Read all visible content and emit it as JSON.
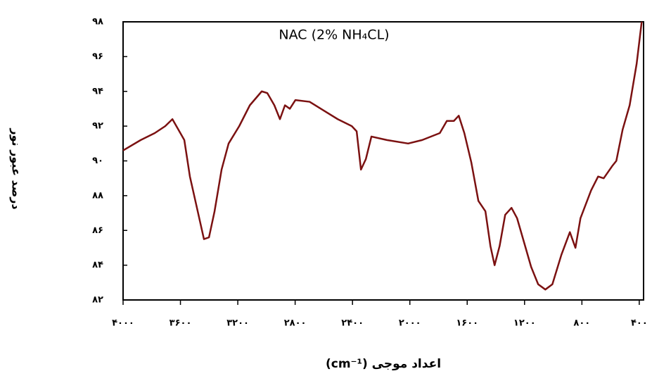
{
  "chart_data": {
    "type": "line",
    "title": "NAC (2% NH₄CL)",
    "x_label": "اعداد موجی (cm⁻¹)",
    "y_label": "درصد عبور نور",
    "xlim": [
      4000,
      370
    ],
    "ylim": [
      82,
      98
    ],
    "xticks": [
      {
        "value": 4000,
        "label": "۴۰۰۰"
      },
      {
        "value": 3600,
        "label": "۳۶۰۰"
      },
      {
        "value": 3200,
        "label": "۳۲۰۰"
      },
      {
        "value": 2800,
        "label": "۲۸۰۰"
      },
      {
        "value": 2400,
        "label": "۲۴۰۰"
      },
      {
        "value": 2000,
        "label": "۲۰۰۰"
      },
      {
        "value": 1600,
        "label": "۱۶۰۰"
      },
      {
        "value": 1200,
        "label": "۱۲۰۰"
      },
      {
        "value": 800,
        "label": "۸۰۰"
      },
      {
        "value": 400,
        "label": "۴۰۰"
      }
    ],
    "yticks": [
      {
        "value": 82,
        "label": "۸۲"
      },
      {
        "value": 84,
        "label": "۸۴"
      },
      {
        "value": 86,
        "label": "۸۶"
      },
      {
        "value": 88,
        "label": "۸۸"
      },
      {
        "value": 90,
        "label": "۹۰"
      },
      {
        "value": 92,
        "label": "۹۲"
      },
      {
        "value": 94,
        "label": "۹۴"
      },
      {
        "value": 96,
        "label": "۹۶"
      },
      {
        "value": 98,
        "label": "۹۸"
      }
    ],
    "x": [
      4000,
      3877,
      3779,
      3706,
      3656,
      3573,
      3534,
      3485,
      3436,
      3401,
      3362,
      3313,
      3264,
      3190,
      3116,
      3033,
      2994,
      2945,
      2906,
      2871,
      2837,
      2798,
      2699,
      2601,
      2503,
      2405,
      2371,
      2341,
      2307,
      2268,
      2160,
      2012,
      1914,
      1791,
      1742,
      1693,
      1659,
      1620,
      1571,
      1522,
      1473,
      1438,
      1409,
      1374,
      1335,
      1291,
      1252,
      1203,
      1154,
      1105,
      1055,
      1006,
      943,
      884,
      845,
      810,
      736,
      687,
      648,
      589,
      560,
      516,
      467,
      418,
      383
    ],
    "series": [
      {
        "name": "NAC",
        "color": "#7b1111",
        "values": [
          90.6,
          91.2,
          91.6,
          92.0,
          92.4,
          91.2,
          89.1,
          87.3,
          85.5,
          85.6,
          87.1,
          89.5,
          91.0,
          92.0,
          93.2,
          94.0,
          93.9,
          93.2,
          92.4,
          93.2,
          93.0,
          93.5,
          93.4,
          92.9,
          92.4,
          92.0,
          91.7,
          89.5,
          90.1,
          91.4,
          91.2,
          91.0,
          91.2,
          91.6,
          92.3,
          92.3,
          92.6,
          91.6,
          89.9,
          87.7,
          87.1,
          85.1,
          84.0,
          85.1,
          86.9,
          87.3,
          86.7,
          85.3,
          83.9,
          82.9,
          82.6,
          82.9,
          84.6,
          85.9,
          85.0,
          86.7,
          88.3,
          89.1,
          89.0,
          89.7,
          90.0,
          91.8,
          93.2,
          95.6,
          98.0
        ]
      }
    ]
  }
}
